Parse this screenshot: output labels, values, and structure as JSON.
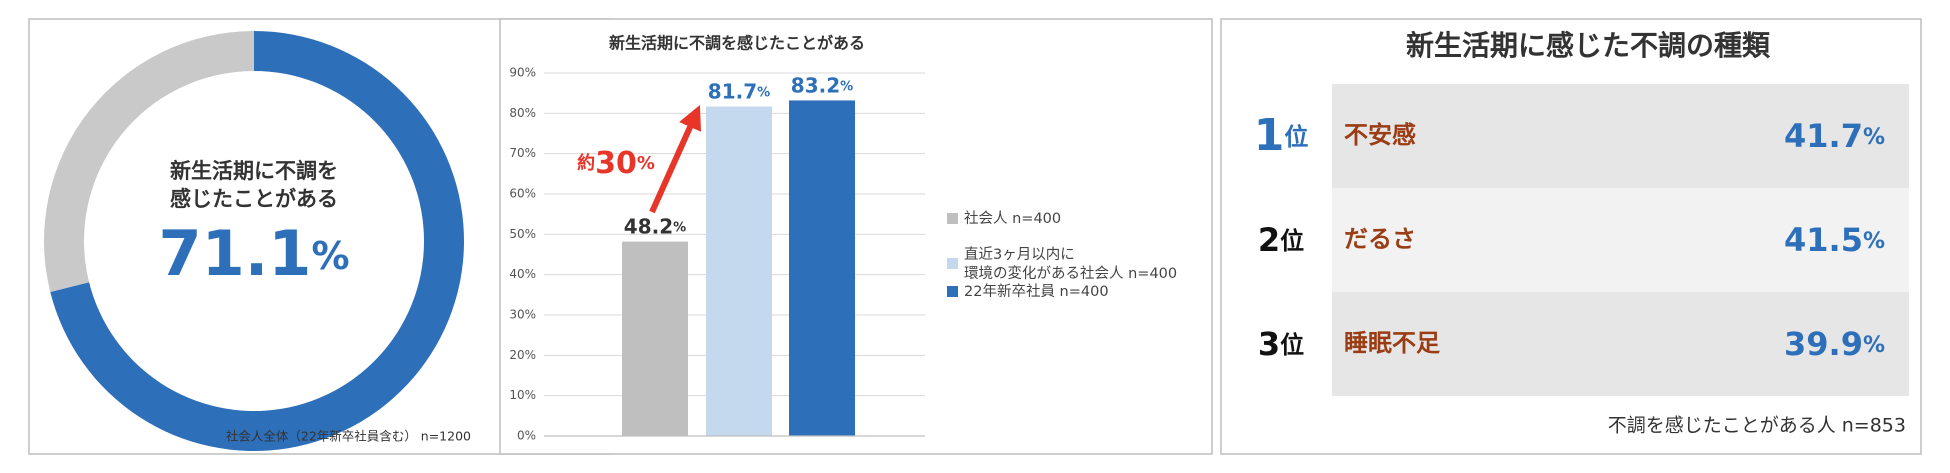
{
  "chart_data": [
    {
      "type": "donut",
      "center_label": [
        "新生活期に不調を",
        "感じたことがある"
      ],
      "values": [
        71.1,
        28.9
      ],
      "value_labels": [
        "71.1%",
        null
      ],
      "colors": [
        "#2e6fba",
        "#c9c9c9"
      ],
      "note": "社会人全体（22年新卒社員含む） n=1200"
    },
    {
      "type": "bar",
      "title": "新生活期に不調を感じたことがある",
      "categories": [
        null
      ],
      "series": [
        {
          "name": "社会人 n=400",
          "color": "#bfbfbf",
          "values": [
            48.2
          ],
          "value_labels": [
            "48.2%"
          ],
          "label_color": "#333333"
        },
        {
          "name": "直近3ヶ月以内に\n環境の変化がある社会人 n=400",
          "color": "#c5d9ee",
          "values": [
            81.7
          ],
          "value_labels": [
            "81.7%"
          ],
          "label_color": "#2e6fba"
        },
        {
          "name": "22年新卒社員 n=400",
          "color": "#2e6fba",
          "values": [
            83.2
          ],
          "value_labels": [
            "83.2%"
          ],
          "label_color": "#2e6fba"
        }
      ],
      "ylim": [
        0,
        90
      ],
      "yticks": [
        {
          "value": 0,
          "label": "0%"
        },
        {
          "value": 10,
          "label": "10%"
        },
        {
          "value": 20,
          "label": "20%"
        },
        {
          "value": 30,
          "label": "30%"
        },
        {
          "value": 40,
          "label": "40%"
        },
        {
          "value": 50,
          "label": "50%"
        },
        {
          "value": 60,
          "label": "60%"
        },
        {
          "value": 70,
          "label": "70%"
        },
        {
          "value": 80,
          "label": "80%"
        },
        {
          "value": 90,
          "label": "90%"
        }
      ],
      "grid": true,
      "legend": "right",
      "annotation": "約30%"
    }
  ],
  "ranking": {
    "title": "新生活期に感じた不調の種類",
    "rows": [
      {
        "rank": "1位",
        "item": "不安感",
        "value": "41.7%"
      },
      {
        "rank": "2位",
        "item": "だるさ",
        "value": "41.5%"
      },
      {
        "rank": "3位",
        "item": "睡眠不足",
        "value": "39.9%"
      }
    ],
    "note": "不調を感じたことがある人 n=853"
  }
}
